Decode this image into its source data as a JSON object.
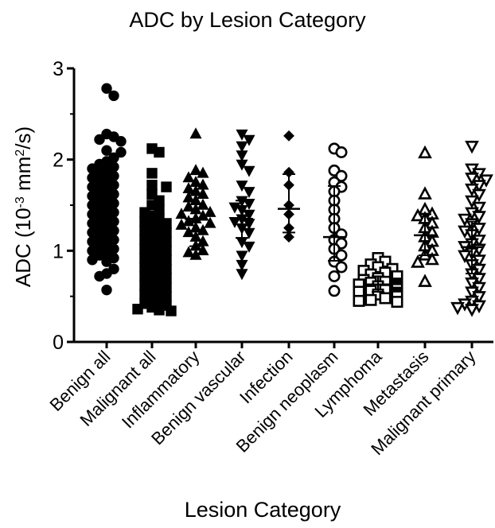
{
  "chart_data": {
    "type": "scatter",
    "title": "ADC by Lesion Category",
    "xlabel": "Lesion Category",
    "ylabel_main": "ADC (10",
    "ylabel_sup": "-3",
    "ylabel_rest": " mm",
    "ylabel_sup2": "2",
    "ylabel_end": "/s)",
    "ylim": [
      0,
      3
    ],
    "yticks": [
      "0",
      "1",
      "2",
      "3"
    ],
    "grid": false,
    "categories": [
      {
        "name": "Benign all",
        "marker": "circle",
        "fill": "#000000",
        "mean": 1.42,
        "sd_low": 1.02,
        "sd_high": 1.78,
        "values": [
          2.78,
          2.7,
          2.28,
          2.25,
          2.22,
          2.2,
          2.1,
          2.08,
          2.02,
          1.98,
          1.95,
          1.92,
          1.9,
          1.88,
          1.85,
          1.82,
          1.8,
          1.78,
          1.75,
          1.72,
          1.7,
          1.68,
          1.65,
          1.62,
          1.6,
          1.58,
          1.55,
          1.52,
          1.5,
          1.48,
          1.45,
          1.42,
          1.4,
          1.38,
          1.35,
          1.32,
          1.3,
          1.28,
          1.25,
          1.22,
          1.2,
          1.18,
          1.15,
          1.12,
          1.1,
          1.08,
          1.05,
          1.02,
          1.0,
          0.98,
          0.95,
          0.92,
          0.9,
          0.88,
          0.8,
          0.75,
          0.72,
          0.57
        ]
      },
      {
        "name": "Malignant all",
        "marker": "square",
        "fill": "#000000",
        "mean": 0.93,
        "sd_low": 0.55,
        "sd_high": 1.32,
        "values": [
          2.12,
          2.08,
          1.85,
          1.72,
          1.7,
          1.62,
          1.55,
          1.5,
          1.45,
          1.42,
          1.38,
          1.35,
          1.32,
          1.3,
          1.28,
          1.25,
          1.22,
          1.2,
          1.18,
          1.15,
          1.12,
          1.1,
          1.08,
          1.05,
          1.02,
          1.0,
          0.98,
          0.95,
          0.92,
          0.9,
          0.88,
          0.85,
          0.82,
          0.8,
          0.78,
          0.75,
          0.72,
          0.7,
          0.68,
          0.65,
          0.62,
          0.6,
          0.58,
          0.55,
          0.52,
          0.5,
          0.48,
          0.45,
          0.42,
          0.4,
          0.38,
          0.36,
          0.35,
          0.34
        ]
      },
      {
        "name": "Inflammatory",
        "marker": "triangle-up",
        "fill": "#000000",
        "mean": 1.35,
        "sd_low": 1.05,
        "sd_high": 1.63,
        "values": [
          2.28,
          1.88,
          1.85,
          1.8,
          1.75,
          1.72,
          1.68,
          1.65,
          1.62,
          1.58,
          1.55,
          1.5,
          1.48,
          1.45,
          1.42,
          1.4,
          1.38,
          1.35,
          1.32,
          1.3,
          1.28,
          1.25,
          1.22,
          1.2,
          1.15,
          1.1,
          1.05,
          1.0,
          0.98,
          0.95
        ]
      },
      {
        "name": "Benign vascular",
        "marker": "triangle-down",
        "fill": "#000000",
        "mean": 1.35,
        "sd_low": 1.14,
        "sd_high": 1.55,
        "values": [
          2.28,
          2.22,
          2.15,
          2.05,
          1.95,
          1.88,
          1.72,
          1.65,
          1.55,
          1.52,
          1.48,
          1.45,
          1.4,
          1.35,
          1.32,
          1.3,
          1.25,
          1.2,
          1.1,
          1.05,
          0.95,
          0.85,
          0.75
        ]
      },
      {
        "name": "Infection",
        "marker": "diamond",
        "fill": "#000000",
        "mean": 1.46,
        "sd_low": 1.2,
        "sd_high": 1.84,
        "values": [
          2.26,
          1.86,
          1.72,
          1.5,
          1.4,
          1.25,
          1.15
        ]
      },
      {
        "name": "Benign neoplasm",
        "marker": "circle",
        "fill": "none",
        "mean": 1.15,
        "sd_low": 0.89,
        "sd_high": 1.71,
        "values": [
          2.12,
          2.08,
          1.88,
          1.82,
          1.75,
          1.7,
          1.65,
          1.55,
          1.45,
          1.35,
          1.25,
          1.18,
          1.12,
          1.08,
          1.02,
          0.95,
          0.88,
          0.82,
          0.72,
          0.56
        ]
      },
      {
        "name": "Lymphoma",
        "marker": "square",
        "fill": "none",
        "mean": 0.63,
        "sd_low": 0.55,
        "sd_high": 0.72,
        "values": [
          0.92,
          0.88,
          0.85,
          0.82,
          0.8,
          0.78,
          0.76,
          0.74,
          0.72,
          0.7,
          0.68,
          0.66,
          0.65,
          0.64,
          0.63,
          0.62,
          0.61,
          0.6,
          0.59,
          0.58,
          0.57,
          0.56,
          0.55,
          0.54,
          0.53,
          0.52,
          0.51,
          0.5,
          0.48,
          0.46,
          0.45,
          0.44
        ]
      },
      {
        "name": "Metastasis",
        "marker": "triangle-up",
        "fill": "none",
        "mean": 1.17,
        "sd_low": 0.95,
        "sd_high": 1.4,
        "values": [
          2.07,
          1.62,
          1.45,
          1.4,
          1.38,
          1.35,
          1.3,
          1.25,
          1.2,
          1.15,
          1.1,
          1.05,
          1.0,
          0.95,
          0.9,
          0.87,
          0.66
        ]
      },
      {
        "name": "Malignant primary",
        "marker": "triangle-down",
        "fill": "none",
        "mean": 1.04,
        "sd_low": 0.75,
        "sd_high": 1.32,
        "values": [
          2.15,
          1.9,
          1.85,
          1.8,
          1.78,
          1.72,
          1.68,
          1.62,
          1.55,
          1.48,
          1.42,
          1.38,
          1.35,
          1.3,
          1.25,
          1.22,
          1.18,
          1.12,
          1.08,
          1.05,
          1.02,
          0.98,
          0.95,
          0.9,
          0.85,
          0.8,
          0.75,
          0.7,
          0.65,
          0.6,
          0.55,
          0.5,
          0.45,
          0.42,
          0.4,
          0.38,
          0.36
        ]
      }
    ]
  }
}
